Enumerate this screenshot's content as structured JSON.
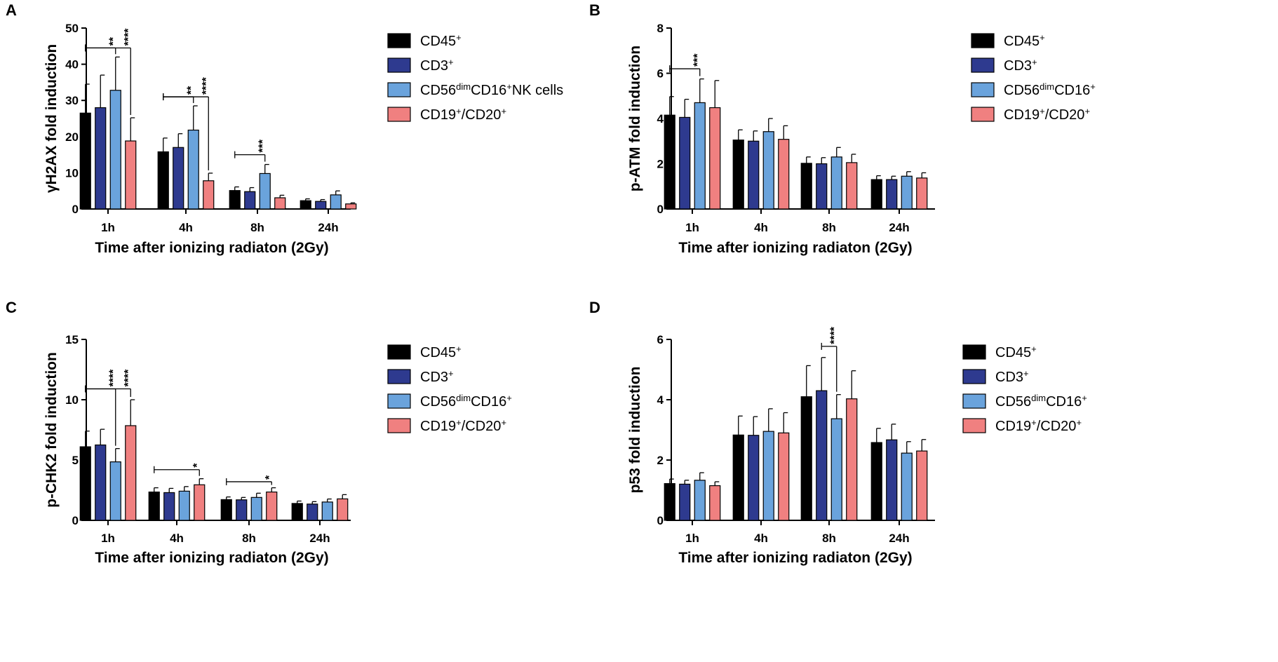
{
  "colors": {
    "CD45": "#000000",
    "CD3": "#2e3a8f",
    "NK": "#6aa3dc",
    "B": "#f08080",
    "axis": "#000000"
  },
  "legend_keys": [
    "CD45",
    "CD3",
    "NK",
    "B"
  ],
  "chart_data": [
    {
      "panel": "A",
      "type": "bar",
      "ylabel": "γH2AX fold induction",
      "xlabel": "Time after ionizing radiaton (2Gy)",
      "categories": [
        "1h",
        "4h",
        "8h",
        "24h"
      ],
      "ylim": [
        0,
        50
      ],
      "yticks": [
        "0",
        "10",
        "20",
        "30",
        "40",
        "50"
      ],
      "legend": [
        {
          "key": "CD45",
          "base": "CD45",
          "sup": "+"
        },
        {
          "key": "CD3",
          "base": "CD3",
          "sup": "+"
        },
        {
          "key": "NK",
          "base": "CD56",
          "sup": "dim",
          "base2": "CD16",
          "sup2": "+",
          "tail": "NK cells"
        },
        {
          "key": "B",
          "base": "CD19",
          "sup": "+",
          "base2": "/CD20",
          "sup2": "+"
        }
      ],
      "series": [
        {
          "name": "CD45+",
          "values": [
            26.5,
            15.8,
            5.1,
            2.3
          ],
          "errors": [
            8.0,
            3.8,
            1.0,
            0.5
          ]
        },
        {
          "name": "CD3+",
          "values": [
            28.0,
            17.0,
            4.8,
            2.1
          ],
          "errors": [
            9.0,
            3.8,
            1.1,
            0.5
          ]
        },
        {
          "name": "CD56dimCD16+ NK cells",
          "values": [
            32.8,
            21.8,
            9.8,
            3.9
          ],
          "errors": [
            9.2,
            6.7,
            2.5,
            1.1
          ]
        },
        {
          "name": "CD19+/CD20+",
          "values": [
            18.8,
            7.8,
            3.1,
            1.4
          ],
          "errors": [
            6.4,
            2.1,
            0.7,
            0.3
          ]
        }
      ],
      "significance": [
        {
          "cat": 0,
          "from": 0,
          "to": 2,
          "label": "**",
          "at": 44.5
        },
        {
          "cat": 0,
          "from": 0,
          "to": 3,
          "label": "****",
          "at": 44.5
        },
        {
          "cat": 1,
          "from": 0,
          "to": 2,
          "label": "**",
          "at": 31.0
        },
        {
          "cat": 1,
          "from": 0,
          "to": 3,
          "label": "****",
          "at": 31.0
        },
        {
          "cat": 2,
          "from": 0,
          "to": 2,
          "label": "***",
          "at": 15.0
        }
      ]
    },
    {
      "panel": "B",
      "type": "bar",
      "ylabel": "p-ATM fold induction",
      "xlabel": "Time after ionizing radiaton (2Gy)",
      "categories": [
        "1h",
        "4h",
        "8h",
        "24h"
      ],
      "ylim": [
        0,
        8
      ],
      "yticks": [
        "0",
        "2",
        "4",
        "6",
        "8"
      ],
      "legend": [
        {
          "key": "CD45",
          "base": "CD45",
          "sup": "+"
        },
        {
          "key": "CD3",
          "base": "CD3",
          "sup": "+"
        },
        {
          "key": "NK",
          "base": "CD56",
          "sup": "dim",
          "base2": "CD16",
          "sup2": "+"
        },
        {
          "key": "B",
          "base": "CD19",
          "sup": "+",
          "base2": "/CD20",
          "sup2": "+"
        }
      ],
      "series": [
        {
          "name": "CD45+",
          "values": [
            4.15,
            3.05,
            2.02,
            1.3
          ],
          "errors": [
            0.82,
            0.45,
            0.28,
            0.17
          ]
        },
        {
          "name": "CD3+",
          "values": [
            4.05,
            3.0,
            2.0,
            1.3
          ],
          "errors": [
            0.8,
            0.45,
            0.27,
            0.15
          ]
        },
        {
          "name": "CD56dimCD16+",
          "values": [
            4.7,
            3.42,
            2.3,
            1.45
          ],
          "errors": [
            1.05,
            0.58,
            0.42,
            0.2
          ]
        },
        {
          "name": "CD19+/CD20+",
          "values": [
            4.48,
            3.08,
            2.05,
            1.37
          ],
          "errors": [
            1.2,
            0.6,
            0.37,
            0.23
          ]
        }
      ],
      "significance": [
        {
          "cat": 0,
          "from": 0,
          "to": 2,
          "label": "***",
          "at": 6.2
        }
      ]
    },
    {
      "panel": "C",
      "type": "bar",
      "ylabel": "p-CHK2 fold induction",
      "xlabel": "Time after ionizing radiaton (2Gy)",
      "categories": [
        "1h",
        "4h",
        "8h",
        "24h"
      ],
      "ylim": [
        0,
        15
      ],
      "yticks": [
        "0",
        "5",
        "10",
        "15"
      ],
      "legend": [
        {
          "key": "CD45",
          "base": "CD45",
          "sup": "+"
        },
        {
          "key": "CD3",
          "base": "CD3",
          "sup": "+"
        },
        {
          "key": "NK",
          "base": "CD56",
          "sup": "dim",
          "base2": "CD16",
          "sup2": "+"
        },
        {
          "key": "B",
          "base": "CD19",
          "sup": "+",
          "base2": "/CD20",
          "sup2": "+"
        }
      ],
      "series": [
        {
          "name": "CD45+",
          "values": [
            6.1,
            2.35,
            1.72,
            1.4
          ],
          "errors": [
            1.3,
            0.35,
            0.22,
            0.2
          ]
        },
        {
          "name": "CD3+",
          "values": [
            6.25,
            2.3,
            1.7,
            1.35
          ],
          "errors": [
            1.3,
            0.35,
            0.2,
            0.2
          ]
        },
        {
          "name": "CD56dimCD16+",
          "values": [
            4.85,
            2.42,
            1.9,
            1.52
          ],
          "errors": [
            1.1,
            0.38,
            0.35,
            0.25
          ]
        },
        {
          "name": "CD19+/CD20+",
          "values": [
            7.85,
            2.95,
            2.35,
            1.78
          ],
          "errors": [
            2.15,
            0.5,
            0.35,
            0.35
          ]
        }
      ],
      "significance": [
        {
          "cat": 0,
          "from": 0,
          "to": 2,
          "label": "****",
          "at": 10.9
        },
        {
          "cat": 0,
          "from": 0,
          "to": 3,
          "label": "****",
          "at": 10.9
        },
        {
          "cat": 1,
          "from": 0,
          "to": 3,
          "label": "*",
          "at": 4.2
        },
        {
          "cat": 2,
          "from": 0,
          "to": 3,
          "label": "*",
          "at": 3.2
        }
      ]
    },
    {
      "panel": "D",
      "type": "bar",
      "ylabel": "p53 fold induction",
      "xlabel": "Time after ionizing radiaton (2Gy)",
      "categories": [
        "1h",
        "4h",
        "8h",
        "24h"
      ],
      "ylim": [
        0,
        6
      ],
      "yticks": [
        "0",
        "2",
        "4",
        "6"
      ],
      "legend": [
        {
          "key": "CD45",
          "base": "CD45",
          "sup": "+"
        },
        {
          "key": "CD3",
          "base": "CD3",
          "sup": "+"
        },
        {
          "key": "NK",
          "base": "CD56",
          "sup": "dim",
          "base2": "CD16",
          "sup2": "+"
        },
        {
          "key": "B",
          "base": "CD19",
          "sup": "+",
          "base2": "/CD20",
          "sup2": "+"
        }
      ],
      "series": [
        {
          "name": "CD45+",
          "values": [
            1.22,
            2.83,
            4.1,
            2.58
          ],
          "errors": [
            0.15,
            0.63,
            1.03,
            0.47
          ]
        },
        {
          "name": "CD3+",
          "values": [
            1.2,
            2.82,
            4.3,
            2.67
          ],
          "errors": [
            0.13,
            0.62,
            1.1,
            0.52
          ]
        },
        {
          "name": "CD56dimCD16+",
          "values": [
            1.33,
            2.95,
            3.37,
            2.23
          ],
          "errors": [
            0.25,
            0.75,
            0.8,
            0.38
          ]
        },
        {
          "name": "CD19+/CD20+",
          "values": [
            1.15,
            2.9,
            4.03,
            2.3
          ],
          "errors": [
            0.13,
            0.67,
            0.93,
            0.38
          ]
        }
      ],
      "significance": [
        {
          "cat": 2,
          "from": 1,
          "to": 2,
          "label": "****",
          "at": 5.77
        }
      ]
    }
  ]
}
